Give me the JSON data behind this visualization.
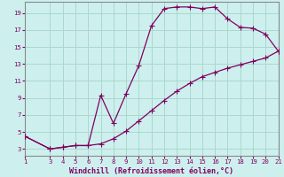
{
  "xlabel": "Windchill (Refroidissement éolien,°C)",
  "bg_color": "#cdf0ee",
  "line_color": "#800060",
  "grid_color": "#aad8cc",
  "x_ticks": [
    1,
    3,
    4,
    5,
    6,
    7,
    8,
    9,
    10,
    11,
    12,
    13,
    14,
    15,
    16,
    17,
    18,
    19,
    20,
    21
  ],
  "y_ticks": [
    3,
    5,
    7,
    9,
    11,
    13,
    15,
    17,
    19
  ],
  "xlim": [
    1,
    21
  ],
  "ylim": [
    2.2,
    20.3
  ],
  "curve1_x": [
    1,
    3,
    4,
    5,
    6,
    7,
    8,
    9,
    10,
    11,
    12,
    13,
    14,
    15,
    16,
    17,
    18,
    19,
    20,
    21
  ],
  "curve1_y": [
    4.5,
    3.0,
    3.2,
    3.4,
    3.4,
    9.3,
    6.0,
    9.5,
    12.8,
    17.5,
    19.5,
    19.7,
    19.7,
    19.5,
    19.7,
    18.3,
    17.3,
    17.2,
    16.5,
    14.5
  ],
  "curve2_x": [
    1,
    3,
    4,
    5,
    6,
    7,
    8,
    9,
    10,
    11,
    12,
    13,
    14,
    15,
    16,
    17,
    18,
    19,
    20,
    21
  ],
  "curve2_y": [
    4.5,
    3.0,
    3.2,
    3.4,
    3.4,
    3.6,
    4.2,
    5.1,
    6.3,
    7.5,
    8.7,
    9.8,
    10.7,
    11.5,
    12.0,
    12.5,
    12.9,
    13.3,
    13.7,
    14.5
  ],
  "marker": "P",
  "markersize": 2.5,
  "linewidth": 0.9,
  "tick_fontsize": 5.2,
  "label_fontsize": 6.0,
  "spine_color": "#888888"
}
